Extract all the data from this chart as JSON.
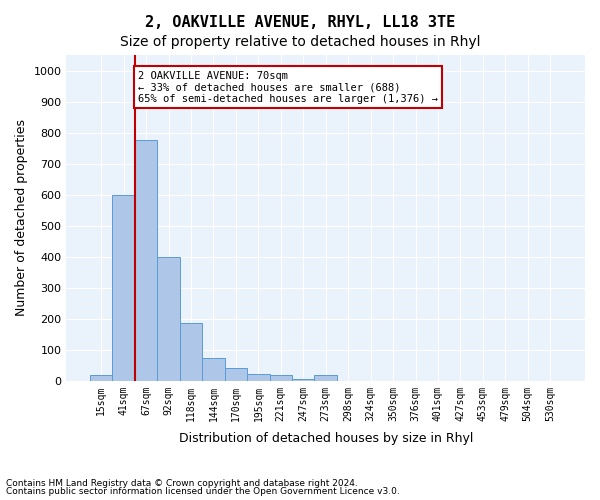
{
  "title": "2, OAKVILLE AVENUE, RHYL, LL18 3TE",
  "subtitle": "Size of property relative to detached houses in Rhyl",
  "xlabel": "Distribution of detached houses by size in Rhyl",
  "ylabel": "Number of detached properties",
  "annotation_text": "2 OAKVILLE AVENUE: 70sqm\n← 33% of detached houses are smaller (688)\n65% of semi-detached houses are larger (1,376) →",
  "footer1": "Contains HM Land Registry data © Crown copyright and database right 2024.",
  "footer2": "Contains public sector information licensed under the Open Government Licence v3.0.",
  "bin_labels": [
    "15sqm",
    "41sqm",
    "67sqm",
    "92sqm",
    "118sqm",
    "144sqm",
    "170sqm",
    "195sqm",
    "221sqm",
    "247sqm",
    "273sqm",
    "298sqm",
    "324sqm",
    "350sqm",
    "376sqm",
    "401sqm",
    "427sqm",
    "453sqm",
    "479sqm",
    "504sqm",
    "530sqm"
  ],
  "bar_values": [
    18,
    600,
    775,
    400,
    185,
    75,
    40,
    22,
    18,
    5,
    18,
    0,
    0,
    0,
    0,
    0,
    0,
    0,
    0,
    0,
    0
  ],
  "bar_color": "#AEC6E8",
  "bar_edge_color": "#5B9BD5",
  "vline_color": "#C00000",
  "annotation_box_color": "#C00000",
  "ylim": [
    0,
    1050
  ],
  "yticks": [
    0,
    100,
    200,
    300,
    400,
    500,
    600,
    700,
    800,
    900,
    1000
  ],
  "background_color": "#EAF2FB",
  "grid_color": "#FFFFFF",
  "title_fontsize": 11,
  "subtitle_fontsize": 10,
  "label_fontsize": 9
}
